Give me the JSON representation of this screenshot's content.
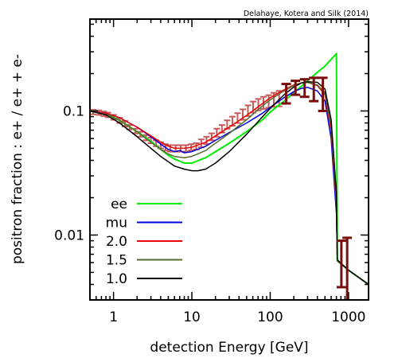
{
  "chart_data": {
    "type": "line",
    "credit": "Delahaye, Kotera and Silk (2014)",
    "xlabel": "detection Energy [GeV]",
    "ylabel": "positron fraction : e+ / e+ + e-",
    "xscale": "log",
    "yscale": "log",
    "xlim": [
      0.5,
      1800
    ],
    "ylim": [
      0.003,
      0.55
    ],
    "x_ticks": [
      1,
      10,
      100,
      1000
    ],
    "x_tick_labels": [
      "1",
      "10",
      "100",
      "1000"
    ],
    "y_ticks": [
      0.01,
      0.1
    ],
    "y_tick_labels": [
      "0.01",
      "0.1"
    ],
    "grid": false,
    "legend_position": "bottom-left",
    "series": [
      {
        "name": "ee",
        "color": "#00ee00",
        "x": [
          0.5,
          0.8,
          1.2,
          2,
          3,
          4,
          5,
          6,
          8,
          10,
          15,
          20,
          30,
          50,
          80,
          100,
          150,
          200,
          300,
          400,
          500,
          700,
          720,
          1000,
          1800
        ],
        "y": [
          0.1,
          0.095,
          0.084,
          0.068,
          0.057,
          0.049,
          0.044,
          0.041,
          0.038,
          0.038,
          0.042,
          0.047,
          0.055,
          0.068,
          0.085,
          0.098,
          0.12,
          0.14,
          0.175,
          0.205,
          0.23,
          0.29,
          0.0062,
          0.0052,
          0.004
        ]
      },
      {
        "name": "mu",
        "color": "#0000dd",
        "x": [
          0.5,
          0.8,
          1.2,
          2,
          3,
          4,
          5,
          6,
          7,
          8,
          10,
          15,
          20,
          30,
          50,
          80,
          100,
          150,
          200,
          250,
          300,
          400,
          500,
          600,
          700,
          720,
          1000,
          1800
        ],
        "y": [
          0.1,
          0.096,
          0.088,
          0.074,
          0.062,
          0.054,
          0.049,
          0.047,
          0.048,
          0.046,
          0.047,
          0.052,
          0.058,
          0.067,
          0.08,
          0.096,
          0.107,
          0.128,
          0.143,
          0.152,
          0.155,
          0.145,
          0.12,
          0.06,
          0.015,
          0.0062,
          0.0052,
          0.004
        ]
      },
      {
        "name": "2.0",
        "color": "#ee0000",
        "x": [
          0.5,
          0.8,
          1.2,
          2,
          3,
          4,
          5,
          6,
          8,
          10,
          15,
          20,
          30,
          50,
          80,
          100,
          150,
          200,
          250,
          300,
          400,
          500,
          600,
          700,
          720,
          1000,
          1800
        ],
        "y": [
          0.1,
          0.096,
          0.088,
          0.074,
          0.063,
          0.056,
          0.052,
          0.05,
          0.05,
          0.051,
          0.056,
          0.063,
          0.074,
          0.092,
          0.115,
          0.128,
          0.148,
          0.162,
          0.168,
          0.17,
          0.16,
          0.135,
          0.07,
          0.018,
          0.0062,
          0.0052,
          0.004
        ]
      },
      {
        "name": "1.5",
        "color": "#556b2f",
        "x": [
          0.5,
          0.8,
          1.2,
          2,
          3,
          4,
          5,
          6,
          8,
          10,
          15,
          20,
          30,
          50,
          80,
          100,
          150,
          200,
          250,
          300,
          400,
          500,
          600,
          700,
          720,
          1000,
          1800
        ],
        "y": [
          0.1,
          0.094,
          0.084,
          0.068,
          0.056,
          0.049,
          0.045,
          0.043,
          0.042,
          0.043,
          0.048,
          0.055,
          0.066,
          0.085,
          0.11,
          0.123,
          0.145,
          0.16,
          0.168,
          0.17,
          0.162,
          0.14,
          0.075,
          0.02,
          0.0062,
          0.0052,
          0.004
        ]
      },
      {
        "name": "1.0",
        "color": "#000000",
        "x": [
          0.5,
          0.8,
          1.2,
          2,
          3,
          4,
          5,
          6,
          8,
          10,
          12,
          15,
          20,
          30,
          50,
          80,
          100,
          150,
          200,
          250,
          300,
          400,
          500,
          600,
          700,
          720,
          1000,
          1800
        ],
        "y": [
          0.1,
          0.093,
          0.08,
          0.062,
          0.05,
          0.043,
          0.039,
          0.036,
          0.034,
          0.033,
          0.033,
          0.034,
          0.038,
          0.047,
          0.065,
          0.09,
          0.105,
          0.135,
          0.156,
          0.168,
          0.172,
          0.17,
          0.15,
          0.085,
          0.022,
          0.0063,
          0.0052,
          0.004
        ]
      }
    ],
    "data_points": {
      "name": "measurements",
      "color": "#c45a5a",
      "x": [
        0.55,
        0.65,
        0.75,
        0.85,
        1.0,
        1.2,
        1.4,
        1.6,
        1.9,
        2.2,
        2.6,
        3.0,
        3.5,
        4.0,
        4.6,
        5.3,
        6.2,
        7.2,
        8.4,
        9.8,
        11.4,
        13.2,
        15.4,
        17.9,
        20.8,
        24.2,
        28.2,
        32.9,
        38.3,
        44.6,
        52,
        60.5,
        70.5,
        82,
        95.5,
        111,
        130
      ],
      "y": [
        0.098,
        0.097,
        0.095,
        0.093,
        0.089,
        0.084,
        0.079,
        0.074,
        0.069,
        0.065,
        0.061,
        0.058,
        0.055,
        0.053,
        0.051,
        0.05,
        0.05,
        0.05,
        0.05,
        0.051,
        0.052,
        0.055,
        0.058,
        0.062,
        0.067,
        0.072,
        0.078,
        0.083,
        0.088,
        0.094,
        0.101,
        0.108,
        0.113,
        0.117,
        0.12,
        0.124,
        0.127
      ],
      "err": [
        0.004,
        0.004,
        0.004,
        0.004,
        0.004,
        0.004,
        0.004,
        0.003,
        0.003,
        0.003,
        0.003,
        0.003,
        0.003,
        0.003,
        0.003,
        0.003,
        0.003,
        0.003,
        0.003,
        0.003,
        0.003,
        0.004,
        0.004,
        0.004,
        0.005,
        0.005,
        0.006,
        0.007,
        0.008,
        0.009,
        0.01,
        0.011,
        0.012,
        0.013,
        0.014,
        0.016,
        0.018
      ]
    },
    "error_bars": {
      "name": "high-energy measurements",
      "color": "#7a0e0e",
      "x": [
        160,
        210,
        275,
        360,
        470,
        810,
        960
      ],
      "y": [
        0.14,
        0.155,
        0.155,
        0.15,
        0.14,
        0.0055,
        0.0036
      ],
      "low": [
        0.115,
        0.135,
        0.13,
        0.12,
        0.1,
        0.0038,
        0.0027
      ],
      "high": [
        0.165,
        0.175,
        0.18,
        0.185,
        0.185,
        0.009,
        0.0095
      ]
    }
  }
}
